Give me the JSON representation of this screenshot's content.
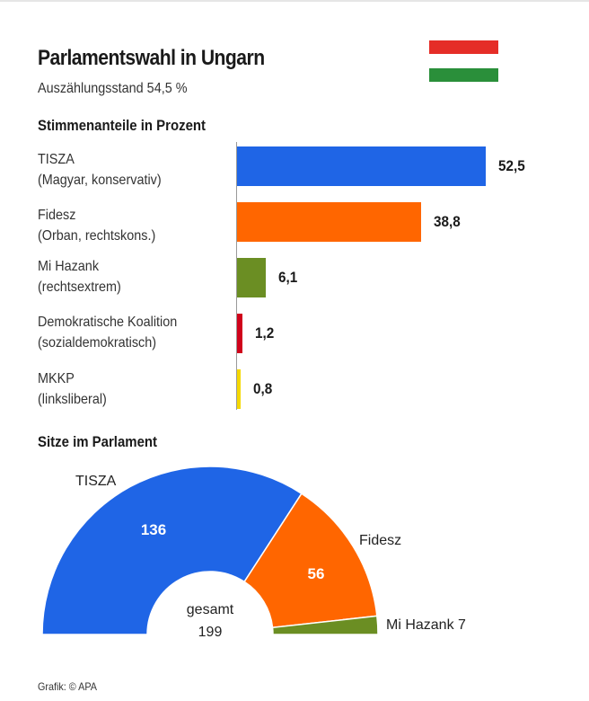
{
  "header": {
    "title": "Parlamentswahl in Ungarn",
    "subtitle": "Auszählungsstand 54,5 %"
  },
  "flag": {
    "colors": [
      "#e52d27",
      "#ffffff",
      "#2a8f3a"
    ]
  },
  "chart_data": [
    {
      "type": "bar",
      "title": "Stimmenanteile in Prozent",
      "orientation": "horizontal",
      "xlim": [
        0,
        60
      ],
      "categories": [
        {
          "name": "TISZA",
          "detail": "(Magyar, konservativ)",
          "value": 52.5,
          "label": "52,5",
          "color": "#1f65e6"
        },
        {
          "name": "Fidesz",
          "detail": "(Orban, rechtskons.)",
          "value": 38.8,
          "label": "38,8",
          "color": "#ff6600"
        },
        {
          "name": "Mi Hazank",
          "detail": "(rechtsextrem)",
          "value": 6.1,
          "label": "6,1",
          "color": "#6b8e23"
        },
        {
          "name": "Demokratische Koalition",
          "detail": "(sozialdemokratisch)",
          "value": 1.2,
          "label": "1,2",
          "color": "#d0021b"
        },
        {
          "name": "MKKP",
          "detail": "(linksliberal)",
          "value": 0.8,
          "label": "0,8",
          "color": "#f5d800"
        }
      ]
    },
    {
      "type": "pie",
      "subtype": "hemicycle",
      "title": "Sitze im Parlament",
      "total_label": "gesamt",
      "total": 199,
      "series": [
        {
          "name": "TISZA",
          "value": 136,
          "color": "#1f65e6"
        },
        {
          "name": "Fidesz",
          "value": 56,
          "color": "#ff6600"
        },
        {
          "name": "Mi Hazank",
          "value": 7,
          "color": "#6b8e23"
        }
      ],
      "outside_labels": [
        "TISZA",
        "Fidesz",
        "Mi Hazank 7"
      ]
    }
  ],
  "footer": {
    "credit": "Grafik: © APA"
  }
}
